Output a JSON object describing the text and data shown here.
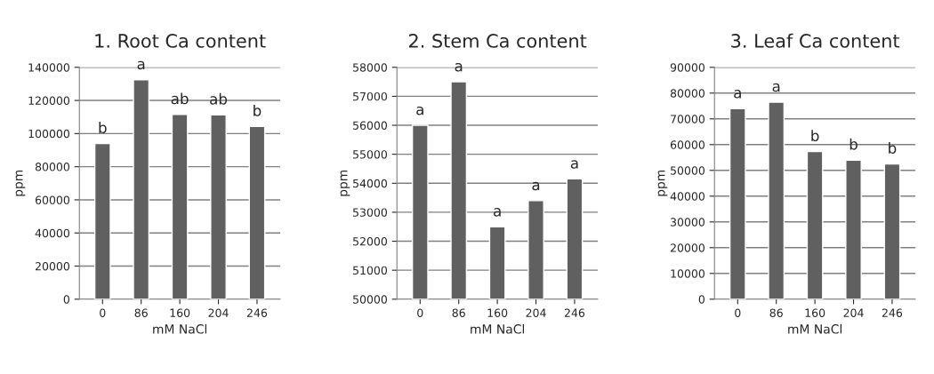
{
  "chart_data": [
    {
      "type": "bar",
      "title": "1. Root Ca content",
      "xlabel": "mM NaCl",
      "ylabel": "ppm",
      "categories": [
        "0",
        "86",
        "160",
        "204",
        "246"
      ],
      "values": [
        94000,
        132500,
        111500,
        111300,
        104300
      ],
      "color": "#606060",
      "ylim": [
        0,
        140000
      ],
      "yticks": [
        0,
        20000,
        40000,
        60000,
        80000,
        100000,
        120000,
        140000
      ],
      "grid": "y",
      "annotations": [
        {
          "text": "b",
          "x": "0",
          "y": 94000
        },
        {
          "text": "a",
          "x": "86",
          "y": 132500
        },
        {
          "text": "ab",
          "x": "160",
          "y": 111500
        },
        {
          "text": "ab",
          "x": "204",
          "y": 111300
        },
        {
          "text": "b",
          "x": "246",
          "y": 104300
        }
      ]
    },
    {
      "type": "bar",
      "title": "2. Stem Ca content",
      "xlabel": "mM NaCl",
      "ylabel": "ppm",
      "categories": [
        "0",
        "86",
        "160",
        "204",
        "246"
      ],
      "values": [
        56000,
        57500,
        52500,
        53400,
        54150
      ],
      "color": "#606060",
      "ylim": [
        50000,
        58000
      ],
      "yticks": [
        50000,
        51000,
        52000,
        53000,
        54000,
        55000,
        56000,
        57000,
        58000
      ],
      "grid": "y",
      "annotations": [
        {
          "text": "a",
          "x": "0",
          "y": 56000
        },
        {
          "text": "a",
          "x": "86",
          "y": 57500
        },
        {
          "text": "a",
          "x": "160",
          "y": 52500
        },
        {
          "text": "a",
          "x": "204",
          "y": 53400
        },
        {
          "text": "a",
          "x": "246",
          "y": 54150
        }
      ]
    },
    {
      "type": "bar",
      "title": "3. Leaf Ca content",
      "xlabel": "mM NaCl",
      "ylabel": "ppm",
      "categories": [
        "0",
        "86",
        "160",
        "204",
        "246"
      ],
      "values": [
        74000,
        76500,
        57300,
        54000,
        52500
      ],
      "color": "#606060",
      "ylim": [
        0,
        90000
      ],
      "yticks": [
        0,
        10000,
        20000,
        30000,
        40000,
        50000,
        60000,
        70000,
        80000,
        90000
      ],
      "grid": "y",
      "annotations": [
        {
          "text": "a",
          "x": "0",
          "y": 74000
        },
        {
          "text": "a",
          "x": "86",
          "y": 76500
        },
        {
          "text": "b",
          "x": "160",
          "y": 57300
        },
        {
          "text": "b",
          "x": "204",
          "y": 54000
        },
        {
          "text": "b",
          "x": "246",
          "y": 52500
        }
      ]
    }
  ]
}
